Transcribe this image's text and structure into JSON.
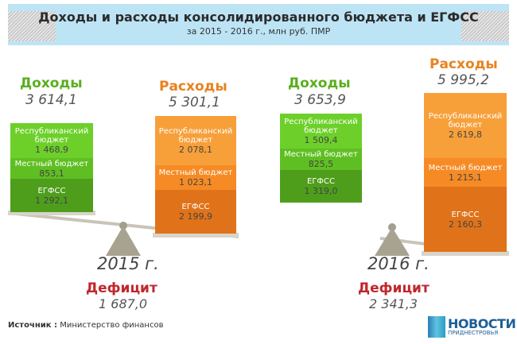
{
  "header": {
    "title": "Доходы и расходы консолидированного бюджета и ЕГФСС",
    "subtitle": "за 2015 - 2016 г., млн руб. ПМР"
  },
  "years": [
    {
      "year": "2015 г.",
      "income": {
        "label": "Доходы",
        "total": "3 614,1",
        "segments": [
          {
            "label": "Республиканский бюджет",
            "value": "1 468,9"
          },
          {
            "label": "Местный бюджет",
            "value": "853,1"
          },
          {
            "label": "ЕГФСС",
            "value": "1 292,1"
          }
        ]
      },
      "expenses": {
        "label": "Расходы",
        "total": "5 301,1",
        "segments": [
          {
            "label": "Республиканский бюджет",
            "value": "2 078,1"
          },
          {
            "label": "Местный бюджет",
            "value": "1 023,1"
          },
          {
            "label": "ЕГФСС",
            "value": "2 199,9"
          }
        ]
      },
      "deficit": {
        "label": "Дефицит",
        "value": "1 687,0"
      }
    },
    {
      "year": "2016 г.",
      "income": {
        "label": "Доходы",
        "total": "3 653,9",
        "segments": [
          {
            "label": "Республиканский бюджет",
            "value": "1 509,4"
          },
          {
            "label": "Местный бюджет",
            "value": "825,5"
          },
          {
            "label": "ЕГФСС",
            "value": "1 319,0"
          }
        ]
      },
      "expenses": {
        "label": "Расходы",
        "total": "5 995,2",
        "segments": [
          {
            "label": "Республиканский бюджет",
            "value": "2 619,8"
          },
          {
            "label": "Местный бюджет",
            "value": "1 215,1"
          },
          {
            "label": "ЕГФСС",
            "value": "2 160,3"
          }
        ]
      },
      "deficit": {
        "label": "Дефицит",
        "value": "2 341,3"
      }
    }
  ],
  "footer": {
    "source_label": "Источник :",
    "source_value": "Министерство финансов",
    "logo_main": "НОВОСТИ",
    "logo_sub": "ПРИДНЕСТРОВЬЯ"
  },
  "colors": {
    "income": [
      "#6dd02a",
      "#5fbf22",
      "#4e9e1c"
    ],
    "expenses": [
      "#f7a03a",
      "#f68b25",
      "#e0731a"
    ],
    "deficit": "#c0272d",
    "banner": "#bde4f5"
  },
  "chart_data": {
    "type": "bar",
    "stacked": true,
    "categories": [
      "2015 Доходы",
      "2015 Расходы",
      "2016 Доходы",
      "2016 Расходы"
    ],
    "series": [
      {
        "name": "Республиканский бюджет",
        "values": [
          1468.9,
          2078.1,
          1509.4,
          2619.8
        ]
      },
      {
        "name": "Местный бюджет",
        "values": [
          853.1,
          1023.1,
          825.5,
          1215.1
        ]
      },
      {
        "name": "ЕГФСС",
        "values": [
          1292.1,
          2199.9,
          1319.0,
          2160.3
        ]
      }
    ],
    "title": "Доходы и расходы консолидированного бюджета и ЕГФСС"
  }
}
